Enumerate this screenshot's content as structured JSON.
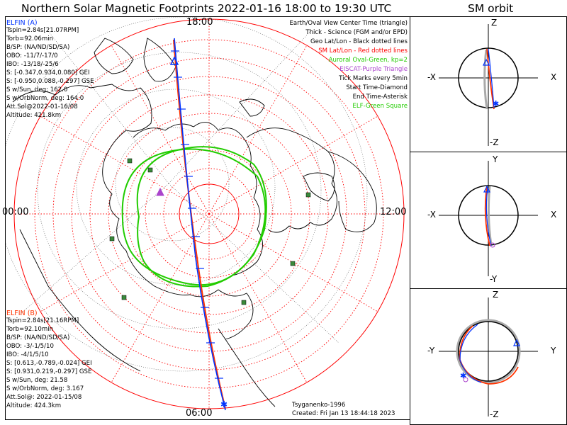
{
  "title": "Northern Solar Magnetic Footprints 2022-01-16 18:00 to 19:30 UTC",
  "orbit_title": "SM orbit",
  "colors": {
    "elfin_a": "#0033ff",
    "elfin_b": "#ff3300",
    "aurora": "#22cc00",
    "red_grid": "#ff0000",
    "eiscat": "#aa44cc",
    "station": "#3a8a3a"
  },
  "map": {
    "label_top": "18:00",
    "label_left": "00:00",
    "label_right": "12:00",
    "label_bottom": "06:00"
  },
  "elfin_a": {
    "header": "ELFIN (A)",
    "lines": [
      "Tspin=2.84s[21.07RPM]",
      "Torb=92.06min",
      "B/SP: (NA/ND/SD/SA)",
      "OBO: -11/7/-17/0",
      "IBO: -13/18/-25/6",
      "S: [-0.347,0.934,0.080] GEI",
      "S: [-0.950,0.088,-0.297] GSE",
      "S w/Sun, deg: 162.0",
      "S w/OrbNorm, deg: 164.0",
      "Att.Sol@2022-01-16/08",
      "Altitude: 421.8km"
    ]
  },
  "elfin_b": {
    "header": "ELFIN (B)",
    "lines": [
      "Tspin=2.84s[21.16RPM]",
      "Torb=92.10min",
      "B/SP: (NA/ND/SD/SA)",
      "OBO: -3/-1/5/10",
      "IBO: -4/1/5/10",
      "S: [0.613,-0.789,-0.024] GEI",
      "S: [0.931,0.219,-0.297] GSE",
      "S w/Sun, deg: 21.58",
      "S w/OrbNorm, deg: 3.167",
      "Att.Sol@: 2022-01-15/08",
      "Altitude: 424.3km"
    ]
  },
  "legend": [
    {
      "text": "Earth/Oval View Center Time (triangle)",
      "color": "#000000"
    },
    {
      "text": "Thick - Science (FGM and/or EPD)",
      "color": "#000000"
    },
    {
      "text": "Geo Lat/Lon - Black dotted lines",
      "color": "#000000"
    },
    {
      "text": "SM Lat/Lon - Red dotted lines",
      "color": "#ff0000"
    },
    {
      "text": "Auroral Oval-Green, kp=2",
      "color": "#22cc00"
    },
    {
      "text": "EISCAT-Purple Triangle",
      "color": "#aa44cc"
    },
    {
      "text": "Tick Marks every 5min",
      "color": "#000000"
    },
    {
      "text": "Start Time-Diamond",
      "color": "#000000"
    },
    {
      "text": "End Time-Asterisk",
      "color": "#000000"
    },
    {
      "text": "ELF-Green Square",
      "color": "#22cc00"
    }
  ],
  "credit": {
    "author": "Tsyganenko-1996",
    "created": "Created: Fri Jan 13 18:44:18 2023"
  },
  "orbit_panels": [
    {
      "top": "Z",
      "bottom": "-Z",
      "left": "-X",
      "right": "X"
    },
    {
      "top": "Y",
      "bottom": "-Y",
      "left": "-X",
      "right": "X"
    },
    {
      "top": "Z",
      "bottom": "-Z",
      "left": "-Y",
      "right": "Y"
    }
  ]
}
